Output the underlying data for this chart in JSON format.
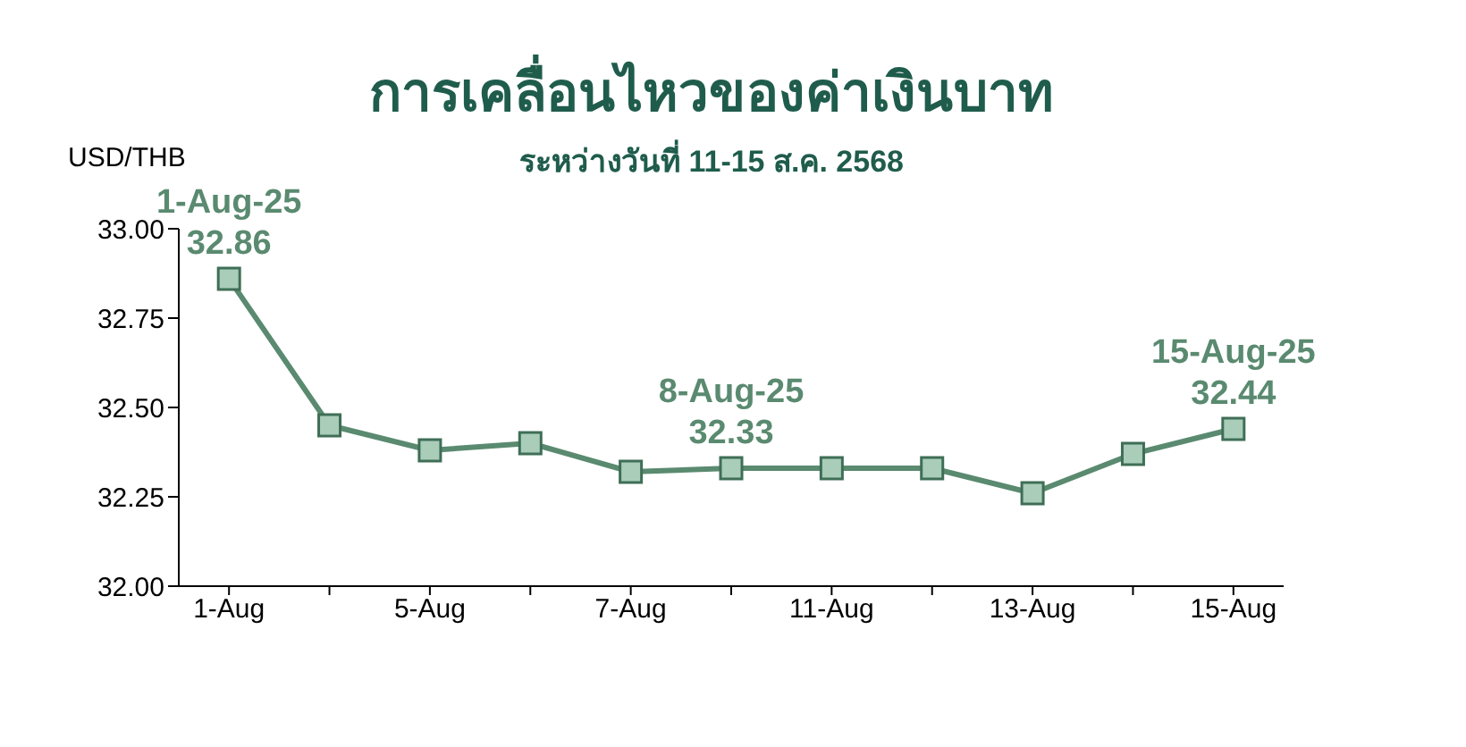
{
  "chart_data": {
    "type": "line",
    "title": "การเคลื่อนไหวของค่าเงินบาท",
    "subtitle": "ระหว่างวันที่ 11-15 ส.ค. 2568",
    "ylabel": "USD/THB",
    "categories": [
      "1-Aug",
      null,
      "5-Aug",
      null,
      "7-Aug",
      null,
      "11-Aug",
      null,
      "13-Aug",
      null,
      "15-Aug"
    ],
    "series": [
      {
        "color": "#5a8a70",
        "values": [
          32.86,
          32.45,
          32.38,
          32.4,
          32.32,
          32.33,
          32.33,
          32.33,
          32.26,
          32.37,
          32.44
        ]
      }
    ],
    "ylim": [
      32.0,
      33.0
    ],
    "yticks": [
      {
        "value": 32.0,
        "label": "32.00"
      },
      {
        "value": 32.25,
        "label": "32.25"
      },
      {
        "value": 32.5,
        "label": "32.50"
      },
      {
        "value": 32.75,
        "label": "32.75"
      },
      {
        "value": 33.0,
        "label": "33.00"
      }
    ],
    "grid": false,
    "legend": false,
    "marker": "square",
    "line_style": "solid",
    "annotations": [
      {
        "text": "1-Aug-25\n32.86",
        "x": "1-Aug",
        "y": 32.86
      },
      {
        "text": "8-Aug-25\n32.33",
        "y": 32.33
      },
      {
        "text": "15-Aug-25\n32.44",
        "x": "15-Aug",
        "y": 32.44
      }
    ]
  }
}
